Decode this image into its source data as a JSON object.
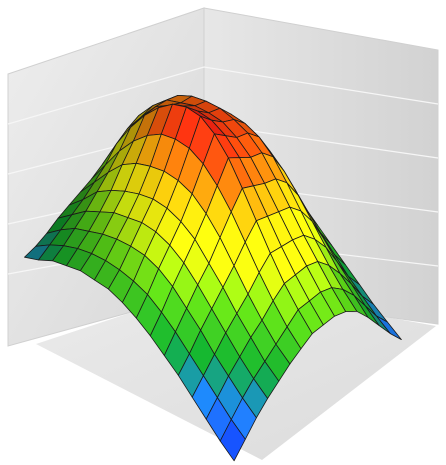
{
  "chart_data": {
    "type": "surface",
    "title": "",
    "xlabel": "",
    "ylabel": "",
    "zlabel": "",
    "grid": true,
    "legend": "none",
    "colormap": [
      "#0a1ee0",
      "#1c6cff",
      "#0f9a2a",
      "#55c415",
      "#d8eb0e",
      "#f0c20c",
      "#f35a0c",
      "#e80f12"
    ],
    "zlim": [
      0,
      1
    ],
    "z": [
      [
        0.18,
        0.2,
        0.23,
        0.27,
        0.3,
        0.33,
        0.36,
        0.4,
        0.44,
        0.48,
        0.46,
        0.43,
        0.39,
        0.34,
        0.3,
        0.26
      ],
      [
        0.22,
        0.26,
        0.3,
        0.34,
        0.38,
        0.43,
        0.48,
        0.55,
        0.59,
        0.62,
        0.6,
        0.55,
        0.48,
        0.42,
        0.37,
        0.31
      ],
      [
        0.27,
        0.31,
        0.36,
        0.41,
        0.47,
        0.53,
        0.6,
        0.68,
        0.7,
        0.72,
        0.71,
        0.66,
        0.58,
        0.5,
        0.43,
        0.36
      ],
      [
        0.3,
        0.35,
        0.4,
        0.46,
        0.53,
        0.62,
        0.7,
        0.79,
        0.8,
        0.8,
        0.79,
        0.73,
        0.65,
        0.56,
        0.47,
        0.39
      ],
      [
        0.33,
        0.38,
        0.44,
        0.51,
        0.58,
        0.68,
        0.78,
        0.88,
        0.86,
        0.84,
        0.84,
        0.78,
        0.69,
        0.6,
        0.49,
        0.4
      ],
      [
        0.34,
        0.4,
        0.47,
        0.54,
        0.62,
        0.72,
        0.84,
        0.95,
        0.91,
        0.88,
        0.87,
        0.81,
        0.72,
        0.62,
        0.5,
        0.4
      ],
      [
        0.35,
        0.41,
        0.49,
        0.57,
        0.65,
        0.75,
        0.87,
        0.99,
        0.94,
        0.9,
        0.89,
        0.83,
        0.74,
        0.63,
        0.51,
        0.41
      ],
      [
        0.34,
        0.41,
        0.5,
        0.58,
        0.66,
        0.76,
        0.88,
        1.0,
        0.95,
        0.91,
        0.89,
        0.84,
        0.75,
        0.63,
        0.5,
        0.4
      ],
      [
        0.32,
        0.4,
        0.49,
        0.57,
        0.65,
        0.75,
        0.86,
        0.97,
        0.93,
        0.89,
        0.88,
        0.83,
        0.73,
        0.61,
        0.48,
        0.38
      ],
      [
        0.29,
        0.37,
        0.46,
        0.54,
        0.62,
        0.71,
        0.81,
        0.91,
        0.88,
        0.85,
        0.84,
        0.79,
        0.69,
        0.57,
        0.44,
        0.34
      ],
      [
        0.25,
        0.33,
        0.41,
        0.49,
        0.56,
        0.65,
        0.74,
        0.82,
        0.8,
        0.78,
        0.77,
        0.72,
        0.63,
        0.51,
        0.39,
        0.3
      ],
      [
        0.21,
        0.28,
        0.36,
        0.43,
        0.5,
        0.57,
        0.65,
        0.72,
        0.71,
        0.7,
        0.69,
        0.64,
        0.56,
        0.45,
        0.34,
        0.26
      ],
      [
        0.16,
        0.23,
        0.3,
        0.37,
        0.43,
        0.49,
        0.56,
        0.62,
        0.62,
        0.62,
        0.61,
        0.56,
        0.49,
        0.39,
        0.29,
        0.22
      ],
      [
        0.11,
        0.18,
        0.25,
        0.31,
        0.37,
        0.42,
        0.48,
        0.53,
        0.54,
        0.55,
        0.54,
        0.49,
        0.42,
        0.34,
        0.25,
        0.18
      ],
      [
        0.06,
        0.13,
        0.2,
        0.26,
        0.31,
        0.36,
        0.41,
        0.46,
        0.47,
        0.48,
        0.47,
        0.43,
        0.37,
        0.29,
        0.21,
        0.15
      ],
      [
        0.02,
        0.09,
        0.16,
        0.22,
        0.27,
        0.32,
        0.36,
        0.4,
        0.41,
        0.42,
        0.41,
        0.38,
        0.32,
        0.25,
        0.18,
        0.12
      ]
    ]
  }
}
